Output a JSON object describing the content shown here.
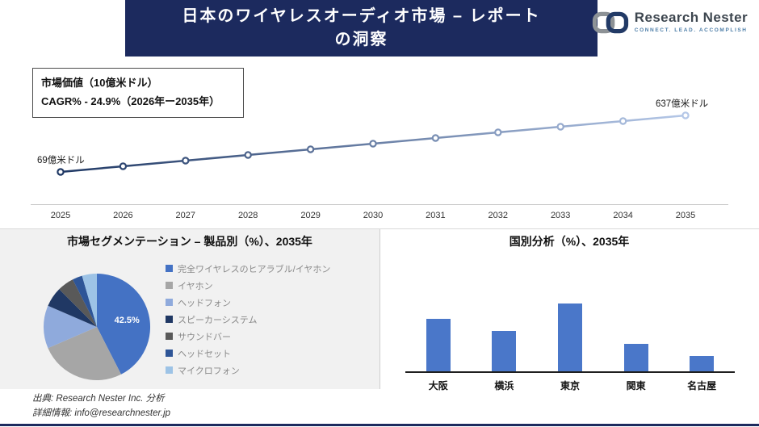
{
  "header": {
    "title_line1": "日本のワイヤレスオーディオ市場 – レポート",
    "title_line2": "の洞察",
    "logo_brand": "Research Nester",
    "logo_tagline": "Connect. Lead. Accomplish"
  },
  "info_box": {
    "line1": "市場価値（10億米ドル）",
    "line2": "CAGR% - 24.9%（2026年ー2035年）"
  },
  "colors": {
    "banner_navy": "#1c2a5e",
    "line_start": "#1f3864",
    "line_end": "#b4c7e7",
    "bar_blue": "#4a77c9"
  },
  "chart_data": [
    {
      "type": "line",
      "title": "市場価値（10億米ドル）",
      "x": [
        2025,
        2026,
        2027,
        2028,
        2029,
        2030,
        2031,
        2032,
        2033,
        2034,
        2035
      ],
      "values": [
        69,
        126,
        183,
        239,
        296,
        353,
        410,
        467,
        523,
        580,
        637
      ],
      "first_point_label": "69億米ドル",
      "last_point_label": "637億米ドル",
      "ylabel": "",
      "xlabel": "",
      "grid": false,
      "legend_position": "none"
    },
    {
      "type": "pie",
      "title": "市場セグメンテーション – 製品別（%）、2035年",
      "labels": [
        "完全ワイヤレスのヒアラブル/イヤホン",
        "イヤホン",
        "ヘッドフォン",
        "スピーカーシステム",
        "サウンドバー",
        "ヘッドセット",
        "マイクロフォン"
      ],
      "values": [
        42.5,
        26,
        13,
        6,
        5,
        3,
        4.5
      ],
      "colors": [
        "#4472c4",
        "#a6a6a6",
        "#8faadc",
        "#203864",
        "#595959",
        "#2e5597",
        "#9dc3e6"
      ],
      "data_label": "42.5%",
      "data_label_slice": 0,
      "legend_position": "right"
    },
    {
      "type": "bar",
      "title": "国別分析（%）、2035年",
      "categories": [
        "大阪",
        "横浜",
        "東京",
        "関東",
        "名古屋"
      ],
      "values": [
        31,
        24,
        40,
        16,
        9
      ],
      "color": "#4a77c9",
      "grid": false,
      "legend_position": "none"
    }
  ],
  "footer": {
    "source": "出典: Research Nester Inc. 分析",
    "contact": "詳細情報: info@researchnester.jp"
  }
}
